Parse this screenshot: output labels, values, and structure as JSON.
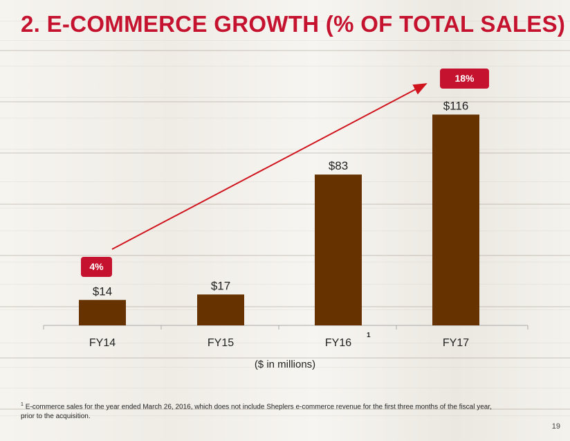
{
  "title": "2. E-COMMERCE GROWTH (% OF TOTAL SALES)",
  "units_label": "($ in millions)",
  "badges": {
    "start": "4%",
    "end": "18%"
  },
  "fy16_superscript": "1",
  "footnote": {
    "marker": "1",
    "text": "E-commerce sales for the  year ended March 26, 2016, which does not include Sheplers e-commerce revenue for the first three months of the fiscal year, prior to the acquisition."
  },
  "page_number": "19",
  "colors": {
    "bar": "#663300",
    "accent": "#c4122f"
  },
  "chart_data": {
    "type": "bar",
    "categories": [
      "FY14",
      "FY15",
      "FY16",
      "FY17"
    ],
    "values": [
      14,
      17,
      83,
      116
    ],
    "value_labels": [
      "$14",
      "$17",
      "$83",
      "$116"
    ],
    "title": "",
    "xlabel": "($ in millions)",
    "ylabel": "",
    "ylim": [
      0,
      120
    ],
    "grid": false,
    "annotations": [
      "4%",
      "18%"
    ]
  }
}
